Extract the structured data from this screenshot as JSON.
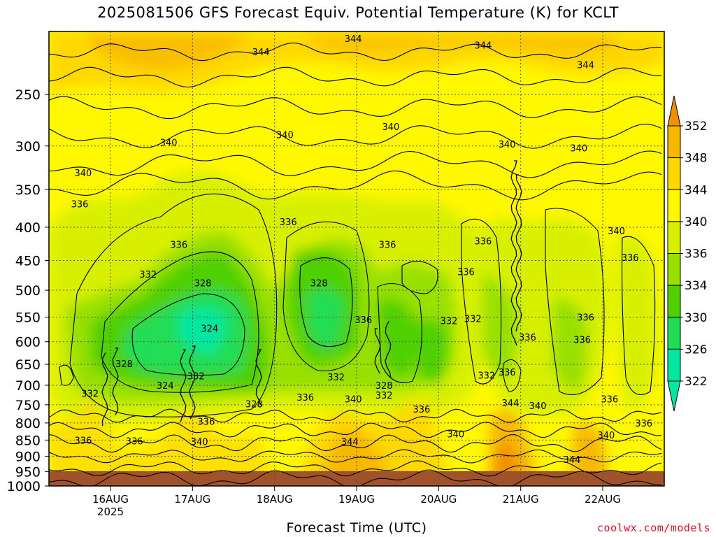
{
  "title": "2025081506 GFS Forecast Equiv. Potential Temperature (K) for KCLT",
  "xlabel": "Forecast Time (UTC)",
  "credit": "coolwx.com/models",
  "chart_data": {
    "type": "heatmap",
    "title": "2025081506 GFS Forecast Equiv. Potential Temperature (K) for KCLT",
    "xlabel": "Forecast Time (UTC)",
    "ylabel": "",
    "y_scale": "log-pressure",
    "y_ticks": [
      250,
      300,
      350,
      400,
      450,
      500,
      550,
      600,
      650,
      700,
      750,
      800,
      850,
      900,
      950,
      1000
    ],
    "ylim": [
      1000,
      200
    ],
    "x_ticks": [
      {
        "label": "16AUG",
        "sub": "2025",
        "hours": 18
      },
      {
        "label": "17AUG",
        "sub": "",
        "hours": 42
      },
      {
        "label": "18AUG",
        "sub": "",
        "hours": 66
      },
      {
        "label": "19AUG",
        "sub": "",
        "hours": 90
      },
      {
        "label": "20AUG",
        "sub": "",
        "hours": 114
      },
      {
        "label": "21AUG",
        "sub": "",
        "hours": 138
      },
      {
        "label": "22AUG",
        "sub": "",
        "hours": 162
      }
    ],
    "xlim_hours": [
      0,
      180
    ],
    "grid": true,
    "colorbar": {
      "labels": [
        352,
        348,
        344,
        340,
        336,
        334,
        330,
        326,
        322
      ],
      "colors": [
        "#f28f05",
        "#f8b800",
        "#ffd800",
        "#fff800",
        "#d8f000",
        "#98e000",
        "#50d000",
        "#20dd55",
        "#00e8a0"
      ]
    },
    "contour_labels": [
      {
        "text": "344",
        "hours": 62,
        "p": 215
      },
      {
        "text": "344",
        "hours": 89,
        "p": 205
      },
      {
        "text": "344",
        "hours": 127,
        "p": 210
      },
      {
        "text": "344",
        "hours": 157,
        "p": 225
      },
      {
        "text": "340",
        "hours": 35,
        "p": 296
      },
      {
        "text": "340",
        "hours": 69,
        "p": 288
      },
      {
        "text": "340",
        "hours": 100,
        "p": 280
      },
      {
        "text": "340",
        "hours": 134,
        "p": 298
      },
      {
        "text": "340",
        "hours": 155,
        "p": 302
      },
      {
        "text": "340",
        "hours": 10,
        "p": 330
      },
      {
        "text": "340",
        "hours": 166,
        "p": 405
      },
      {
        "text": "336",
        "hours": 9,
        "p": 368
      },
      {
        "text": "336",
        "hours": 70,
        "p": 392
      },
      {
        "text": "336",
        "hours": 38,
        "p": 425
      },
      {
        "text": "336",
        "hours": 99,
        "p": 425
      },
      {
        "text": "336",
        "hours": 127,
        "p": 420
      },
      {
        "text": "336",
        "hours": 122,
        "p": 468
      },
      {
        "text": "336",
        "hours": 170,
        "p": 445
      },
      {
        "text": "336",
        "hours": 157,
        "p": 550
      },
      {
        "text": "336",
        "hours": 156,
        "p": 595
      },
      {
        "text": "336",
        "hours": 140,
        "p": 590
      },
      {
        "text": "336",
        "hours": 92,
        "p": 555
      },
      {
        "text": "332",
        "hours": 29,
        "p": 472
      },
      {
        "text": "328",
        "hours": 45,
        "p": 487
      },
      {
        "text": "328",
        "hours": 79,
        "p": 487
      },
      {
        "text": "324",
        "hours": 47,
        "p": 572
      },
      {
        "text": "332",
        "hours": 117,
        "p": 557
      },
      {
        "text": "332",
        "hours": 124,
        "p": 553
      },
      {
        "text": "328",
        "hours": 22,
        "p": 648
      },
      {
        "text": "332",
        "hours": 43,
        "p": 677
      },
      {
        "text": "324",
        "hours": 34,
        "p": 700
      },
      {
        "text": "332",
        "hours": 12,
        "p": 720
      },
      {
        "text": "332",
        "hours": 84,
        "p": 680
      },
      {
        "text": "328",
        "hours": 98,
        "p": 700
      },
      {
        "text": "332",
        "hours": 98,
        "p": 725
      },
      {
        "text": "332",
        "hours": 128,
        "p": 675
      },
      {
        "text": "336",
        "hours": 134,
        "p": 668
      },
      {
        "text": "328",
        "hours": 60,
        "p": 748
      },
      {
        "text": "336",
        "hours": 75,
        "p": 730
      },
      {
        "text": "340",
        "hours": 89,
        "p": 735
      },
      {
        "text": "336",
        "hours": 109,
        "p": 762
      },
      {
        "text": "344",
        "hours": 135,
        "p": 745
      },
      {
        "text": "340",
        "hours": 143,
        "p": 752
      },
      {
        "text": "336",
        "hours": 164,
        "p": 735
      },
      {
        "text": "336",
        "hours": 46,
        "p": 795
      },
      {
        "text": "340",
        "hours": 44,
        "p": 855
      },
      {
        "text": "336",
        "hours": 10,
        "p": 850
      },
      {
        "text": "336",
        "hours": 25,
        "p": 852
      },
      {
        "text": "344",
        "hours": 88,
        "p": 855
      },
      {
        "text": "340",
        "hours": 119,
        "p": 832
      },
      {
        "text": "340",
        "hours": 163,
        "p": 835
      },
      {
        "text": "336",
        "hours": 174,
        "p": 800
      },
      {
        "text": "344",
        "hours": 153,
        "p": 910
      }
    ]
  }
}
